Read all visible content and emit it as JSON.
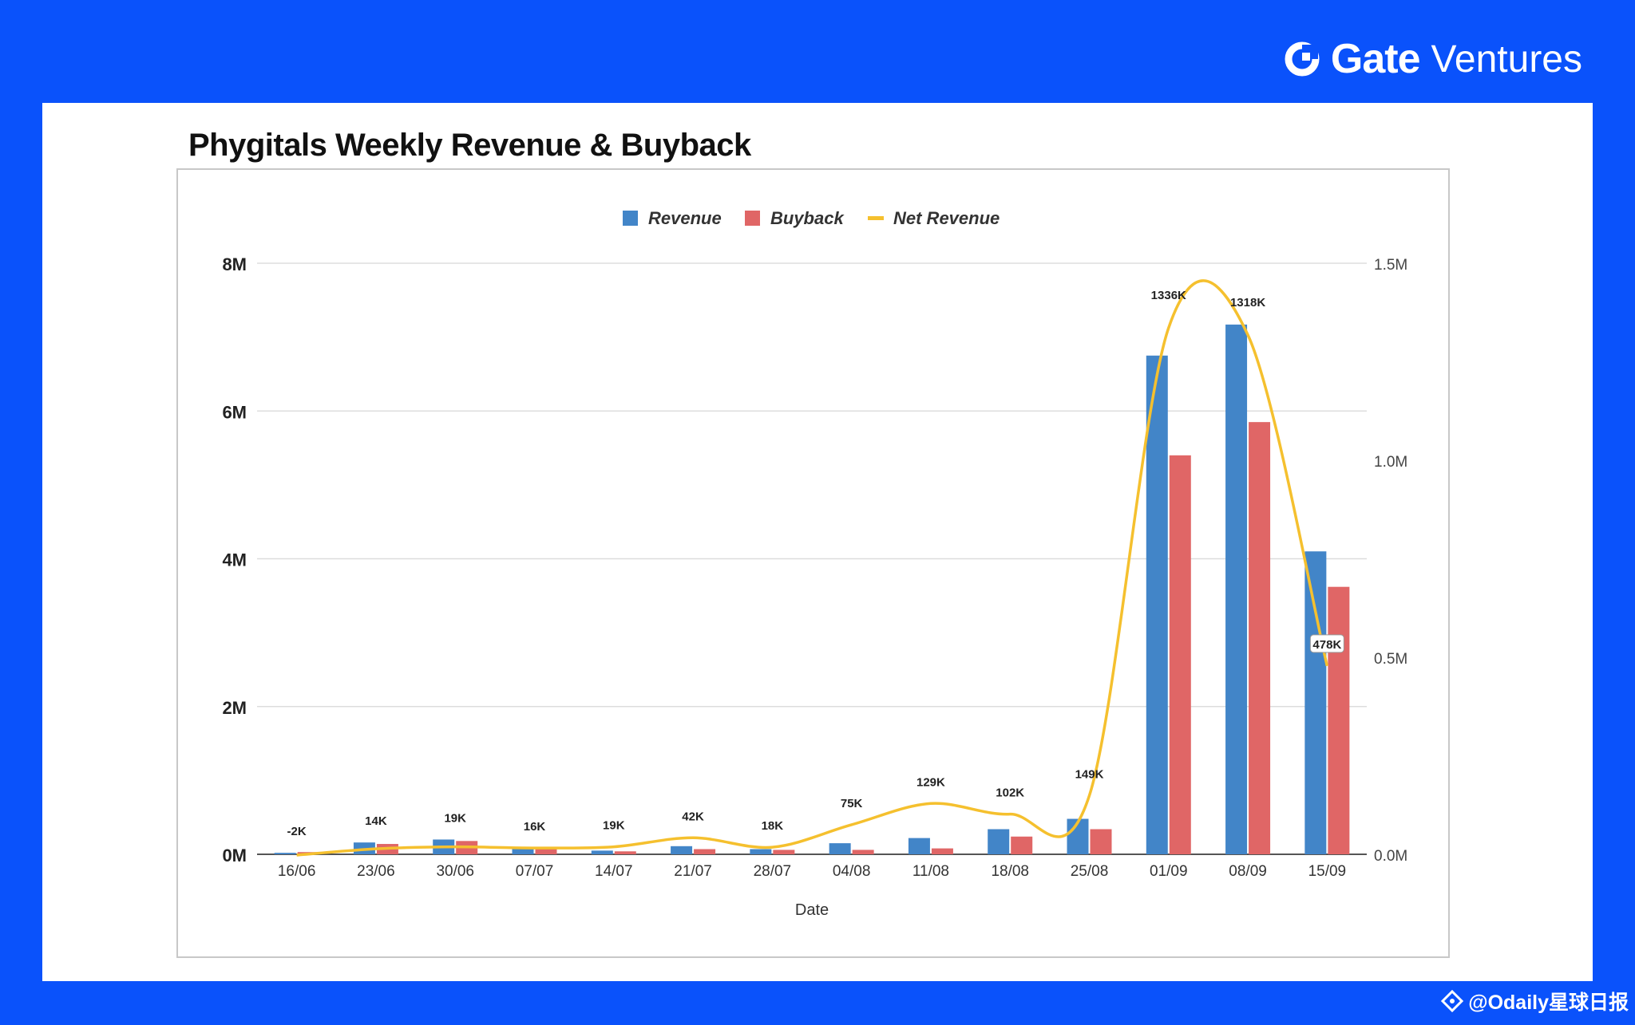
{
  "brand": {
    "name_bold": "Gate",
    "name_light": "Ventures"
  },
  "watermark": {
    "text": "@Odaily星球日报"
  },
  "chart_data": {
    "type": "bar",
    "title": "Phygitals Weekly Revenue & Buyback",
    "xlabel": "Date",
    "ylabel": "",
    "ylim": [
      0,
      8000000
    ],
    "y2lim": [
      0,
      1500000
    ],
    "yticks": [
      "0M",
      "2M",
      "4M",
      "6M",
      "8M"
    ],
    "y2ticks": [
      "0.0M",
      "0.5M",
      "1.0M",
      "1.5M"
    ],
    "legend": [
      "Revenue",
      "Buyback",
      "Net Revenue"
    ],
    "legend_position": "top-center",
    "categories": [
      "16/06",
      "23/06",
      "30/06",
      "07/07",
      "14/07",
      "21/07",
      "28/07",
      "04/08",
      "11/08",
      "18/08",
      "25/08",
      "01/09",
      "08/09",
      "15/09"
    ],
    "series": [
      {
        "name": "Revenue",
        "type": "bar",
        "axis": "left",
        "color": "#4285c8",
        "values": [
          20000,
          160000,
          200000,
          80000,
          50000,
          110000,
          70000,
          150000,
          220000,
          340000,
          480000,
          6750000,
          7170000,
          4100000
        ]
      },
      {
        "name": "Buyback",
        "type": "bar",
        "axis": "left",
        "color": "#e06666",
        "values": [
          30000,
          140000,
          180000,
          70000,
          40000,
          70000,
          60000,
          60000,
          80000,
          240000,
          340000,
          5400000,
          5850000,
          3620000
        ]
      },
      {
        "name": "Net Revenue",
        "type": "line",
        "axis": "right",
        "color": "#f5c02e",
        "values": [
          -2000,
          14000,
          19000,
          16000,
          19000,
          42000,
          18000,
          75000,
          129000,
          102000,
          149000,
          1336000,
          1318000,
          478000
        ],
        "labels": [
          "-2K",
          "14K",
          "19K",
          "16K",
          "19K",
          "42K",
          "18K",
          "75K",
          "129K",
          "102K",
          "149K",
          "1336K",
          "1318K",
          "478K"
        ]
      }
    ]
  }
}
